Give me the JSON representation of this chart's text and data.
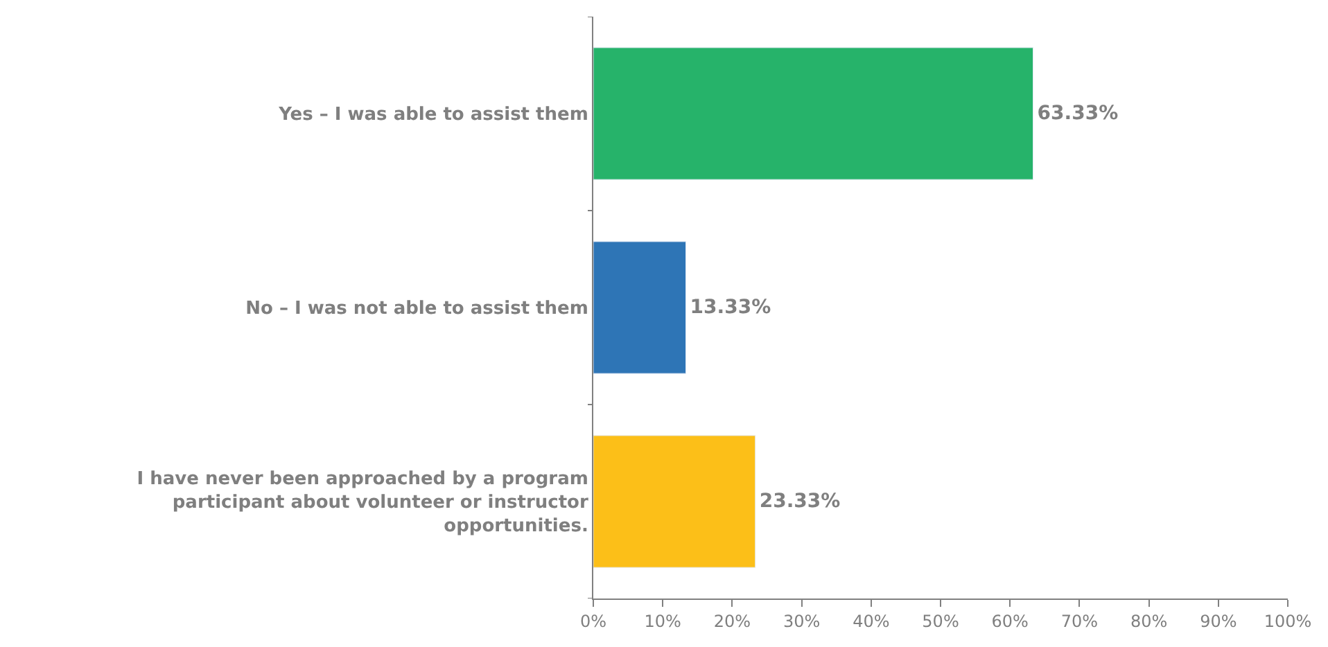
{
  "chart_data": {
    "type": "bar",
    "orientation": "horizontal",
    "categories": [
      "Yes – I was able to assist them",
      "No – I was not able to assist them",
      "I have never been approached by a program participant about volunteer or instructor opportunities."
    ],
    "values": [
      63.33,
      13.33,
      23.33
    ],
    "colors": [
      "#26b36a",
      "#2e75b6",
      "#fcbf18"
    ],
    "value_labels": [
      "63.33%",
      "13.33%",
      "23.33%"
    ],
    "xlim": [
      0,
      100
    ],
    "xticks": [
      {
        "value": 0,
        "label": "0%"
      },
      {
        "value": 10,
        "label": "10%"
      },
      {
        "value": 20,
        "label": "20%"
      },
      {
        "value": 30,
        "label": "30%"
      },
      {
        "value": 40,
        "label": "40%"
      },
      {
        "value": 50,
        "label": "50%"
      },
      {
        "value": 60,
        "label": "60%"
      },
      {
        "value": 70,
        "label": "70%"
      },
      {
        "value": 80,
        "label": "80%"
      },
      {
        "value": 90,
        "label": "90%"
      },
      {
        "value": 100,
        "label": "100%"
      }
    ],
    "legend": false
  }
}
